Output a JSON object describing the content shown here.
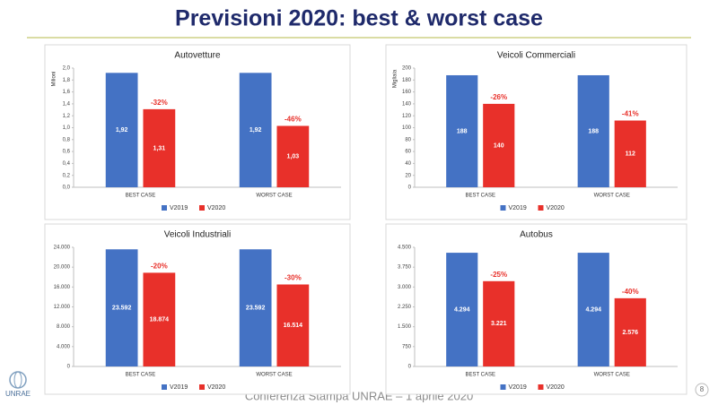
{
  "title": "Previsioni 2020: best & worst case",
  "footer": "Conferenza Stampa UNRAE – 1 aprile 2020",
  "page_number": "8",
  "logo": "UNRAE",
  "chart_data": [
    {
      "type": "bar",
      "title": "Autovetture",
      "y_label": "Milioni",
      "categories": [
        "BEST CASE",
        "WORST CASE"
      ],
      "series": [
        {
          "name": "V2019",
          "color": "#4472c4",
          "values": [
            1.92,
            1.92
          ],
          "value_labels": [
            "1,92",
            "1,92"
          ]
        },
        {
          "name": "V2020",
          "color": "#e8302a",
          "values": [
            1.31,
            1.03
          ],
          "value_labels": [
            "1,31",
            "1,03"
          ]
        }
      ],
      "annotations": [
        "-32%",
        "-46%"
      ],
      "ylim": [
        0,
        2.0
      ],
      "yticks": [
        {
          "value": 0,
          "label": "0,0"
        },
        {
          "value": 0.2,
          "label": "0,2"
        },
        {
          "value": 0.4,
          "label": "0,4"
        },
        {
          "value": 0.6,
          "label": "0,6"
        },
        {
          "value": 0.8,
          "label": "0,8"
        },
        {
          "value": 1.0,
          "label": "1,0"
        },
        {
          "value": 1.2,
          "label": "1,2"
        },
        {
          "value": 1.4,
          "label": "1,4"
        },
        {
          "value": 1.6,
          "label": "1,6"
        },
        {
          "value": 1.8,
          "label": "1,8"
        },
        {
          "value": 2.0,
          "label": "2,0"
        }
      ],
      "legend": "bottom"
    },
    {
      "type": "bar",
      "title": "Veicoli Commerciali",
      "y_label": "Migliaia",
      "categories": [
        "BEST CASE",
        "WORST CASE"
      ],
      "series": [
        {
          "name": "V2019",
          "color": "#4472c4",
          "values": [
            188,
            188
          ]
        },
        {
          "name": "V2020",
          "color": "#e8302a",
          "values": [
            140,
            112
          ]
        }
      ],
      "annotations": [
        "-26%",
        "-41%"
      ],
      "ylim": [
        0,
        200
      ],
      "yticks": [
        0,
        20,
        40,
        60,
        80,
        100,
        120,
        140,
        160,
        180,
        200
      ],
      "legend": "bottom"
    },
    {
      "type": "bar",
      "title": "Veicoli Industriali",
      "categories": [
        "BEST CASE",
        "WORST CASE"
      ],
      "series": [
        {
          "name": "V2019",
          "color": "#4472c4",
          "values": [
            23592,
            23592
          ],
          "value_labels": [
            "23.592",
            "23.592"
          ]
        },
        {
          "name": "V2020",
          "color": "#e8302a",
          "values": [
            18874,
            16514
          ],
          "value_labels": [
            "18.874",
            "16.514"
          ]
        }
      ],
      "annotations": [
        "-20%",
        "-30%"
      ],
      "ylim": [
        0,
        24000
      ],
      "yticks": [
        0,
        {
          "value": 4000,
          "label": "4.000"
        },
        {
          "value": 8000,
          "label": "8.000"
        },
        {
          "value": 12000,
          "label": "12.000"
        },
        {
          "value": 16000,
          "label": "16.000"
        },
        {
          "value": 20000,
          "label": "20.000"
        },
        {
          "value": 24000,
          "label": "24.000"
        }
      ],
      "legend": "bottom"
    },
    {
      "type": "bar",
      "title": "Autobus",
      "categories": [
        "BEST CASE",
        "WORST CASE"
      ],
      "series": [
        {
          "name": "V2019",
          "color": "#4472c4",
          "values": [
            4294,
            4294
          ],
          "value_labels": [
            "4.294",
            "4.294"
          ]
        },
        {
          "name": "V2020",
          "color": "#e8302a",
          "values": [
            3221,
            2576
          ],
          "value_labels": [
            "3.221",
            "2.576"
          ]
        }
      ],
      "annotations": [
        "-25%",
        "-40%"
      ],
      "ylim": [
        0,
        4500
      ],
      "yticks": [
        0,
        750,
        {
          "value": 1500,
          "label": "1.500"
        },
        {
          "value": 2250,
          "label": "2.250"
        },
        {
          "value": 3000,
          "label": "3.000"
        },
        {
          "value": 3750,
          "label": "3.750"
        },
        {
          "value": 4500,
          "label": "4.500"
        }
      ],
      "legend": "bottom"
    }
  ]
}
